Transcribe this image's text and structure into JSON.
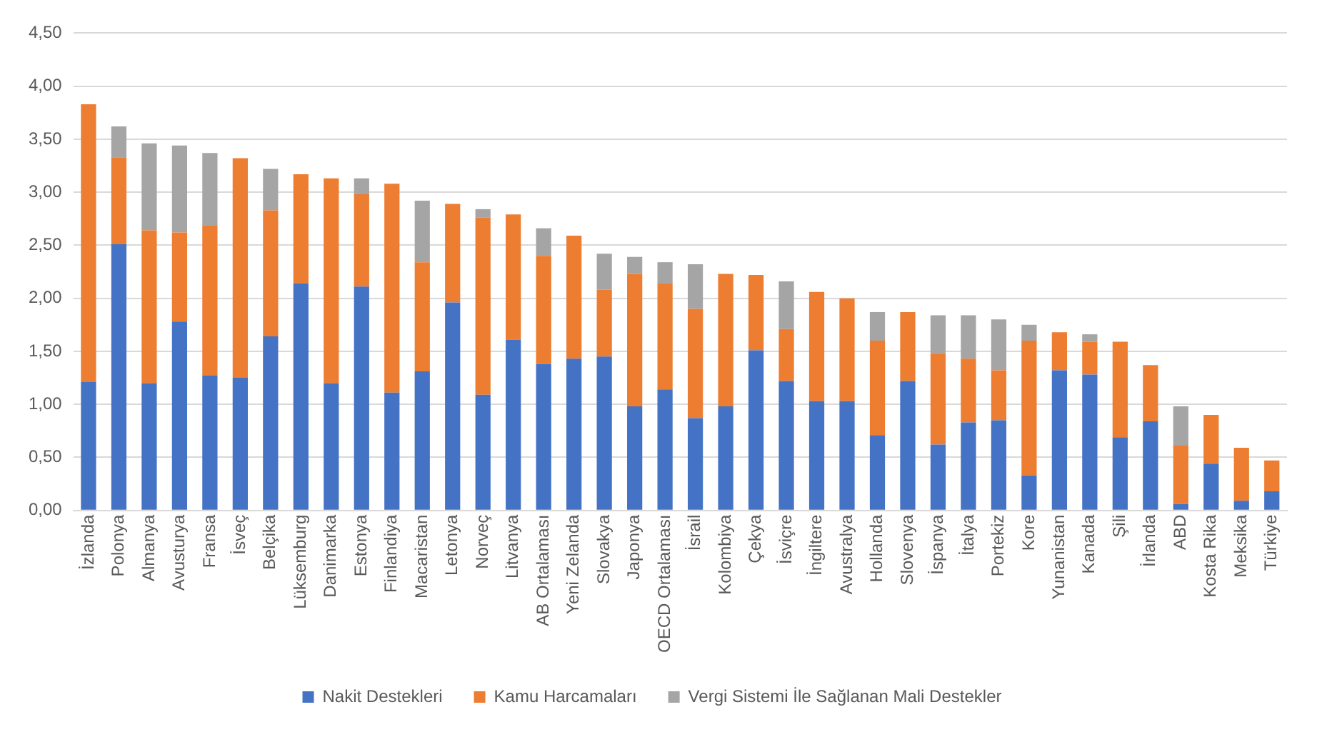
{
  "chart_data": {
    "type": "bar",
    "stacked": true,
    "categories": [
      "İzlanda",
      "Polonya",
      "Almanya",
      "Avusturya",
      "Fransa",
      "İsveç",
      "Belçika",
      "Lüksemburg",
      "Danimarka",
      "Estonya",
      "Finlandiya",
      "Macaristan",
      "Letonya",
      "Norveç",
      "Litvanya",
      "AB Ortalaması",
      "Yeni Zelanda",
      "Slovakya",
      "Japonya",
      "OECD Ortalaması",
      "İsrail",
      "Kolombiya",
      "Çekya",
      "İsviçre",
      "İngiltere",
      "Avustralya",
      "Hollanda",
      "Slovenya",
      "İspanya",
      "İtalya",
      "Portekiz",
      "Kore",
      "Yunanistan",
      "Kanada",
      "Şili",
      "İrlanda",
      "ABD",
      "Kosta Rika",
      "Meksika",
      "Türkiye"
    ],
    "series": [
      {
        "name": "Nakit Destekleri",
        "color": "#4472c4",
        "values": [
          1.21,
          2.51,
          1.2,
          1.78,
          1.27,
          1.25,
          1.64,
          2.14,
          1.2,
          2.11,
          1.11,
          1.31,
          1.96,
          1.09,
          1.61,
          1.38,
          1.43,
          1.45,
          0.98,
          1.14,
          0.87,
          0.98,
          1.51,
          1.22,
          1.03,
          1.03,
          0.71,
          1.22,
          0.62,
          0.83,
          0.85,
          0.33,
          1.32,
          1.28,
          0.69,
          0.84,
          0.06,
          0.44,
          0.09,
          0.18
        ]
      },
      {
        "name": "Kamu Harcamaları",
        "color": "#ed7d31",
        "values": [
          2.62,
          0.82,
          1.44,
          0.84,
          1.42,
          2.07,
          1.19,
          1.03,
          1.93,
          0.87,
          1.97,
          1.03,
          0.93,
          1.67,
          1.18,
          1.02,
          1.16,
          0.63,
          1.25,
          1.0,
          1.03,
          1.25,
          0.71,
          0.49,
          1.03,
          0.97,
          0.89,
          0.65,
          0.86,
          0.6,
          0.47,
          1.27,
          0.36,
          0.31,
          0.9,
          0.53,
          0.55,
          0.46,
          0.5,
          0.29
        ]
      },
      {
        "name": "Vergi Sistemi İle Sağlanan Mali Destekler",
        "color": "#a5a5a5",
        "values": [
          0,
          0.29,
          0.82,
          0.82,
          0.68,
          0,
          0.39,
          0,
          0,
          0.15,
          0,
          0.58,
          0,
          0.08,
          0,
          0.26,
          0,
          0.34,
          0.16,
          0.2,
          0.42,
          0,
          0,
          0.45,
          0,
          0,
          0.27,
          0,
          0.36,
          0.41,
          0.48,
          0.15,
          0,
          0.07,
          0,
          0,
          0.37,
          0,
          0,
          0
        ]
      }
    ],
    "ylim": [
      0,
      4.5
    ],
    "yticks": [
      {
        "value": 0,
        "label": "0,00"
      },
      {
        "value": 0.5,
        "label": "0,50"
      },
      {
        "value": 1,
        "label": "1,00"
      },
      {
        "value": 1.5,
        "label": "1,50"
      },
      {
        "value": 2,
        "label": "2,00"
      },
      {
        "value": 2.5,
        "label": "2,50"
      },
      {
        "value": 3,
        "label": "3,00"
      },
      {
        "value": 3.5,
        "label": "3,50"
      },
      {
        "value": 4,
        "label": "4,00"
      },
      {
        "value": 4.5,
        "label": "4,50"
      }
    ],
    "grid": "y",
    "legend": "bottom"
  }
}
